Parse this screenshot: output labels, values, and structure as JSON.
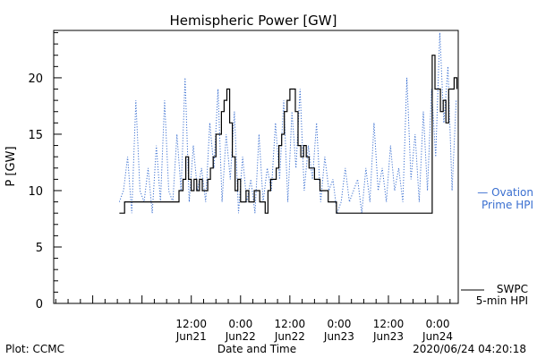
{
  "chart_data": {
    "type": "line",
    "title": "Hemispheric Power [GW]",
    "ylabel": "P [GW]",
    "xlabel": "Date and Time",
    "ylim": [
      0,
      24.2
    ],
    "yticks": [
      0,
      5,
      10,
      15,
      20
    ],
    "xlim": [
      "2020-06-20T02:30",
      "2020-06-24T05:00"
    ],
    "xticks": [
      {
        "t": "2020-06-21T12:00",
        "line1": "12:00",
        "line2": "Jun21"
      },
      {
        "t": "2020-06-22T00:00",
        "line1": "0:00",
        "line2": "Jun22"
      },
      {
        "t": "2020-06-22T12:00",
        "line1": "12:00",
        "line2": "Jun22"
      },
      {
        "t": "2020-06-23T00:00",
        "line1": "0:00",
        "line2": "Jun23"
      },
      {
        "t": "2020-06-23T12:00",
        "line1": "12:00",
        "line2": "Jun23"
      },
      {
        "t": "2020-06-24T00:00",
        "line1": "0:00",
        "line2": "Jun24"
      }
    ],
    "series": [
      {
        "name": "SWPC 5-min HPI",
        "legend_line1": "SWPC",
        "legend_line2": "5-min HPI",
        "color": "#000000",
        "style": "solid",
        "x": [
          "2020-06-20T18:30",
          "2020-06-20T19:10",
          "2020-06-20T19:45",
          "2020-06-20T20:40",
          "2020-06-20T22:00",
          "2020-06-20T23:30",
          "2020-06-21T01:00",
          "2020-06-21T03:00",
          "2020-06-21T05:00",
          "2020-06-21T06:30",
          "2020-06-21T08:00",
          "2020-06-21T09:00",
          "2020-06-21T10:00",
          "2020-06-21T10:40",
          "2020-06-21T11:20",
          "2020-06-21T12:00",
          "2020-06-21T12:40",
          "2020-06-21T13:20",
          "2020-06-21T14:00",
          "2020-06-21T14:40",
          "2020-06-21T15:20",
          "2020-06-21T16:00",
          "2020-06-21T16:40",
          "2020-06-21T17:20",
          "2020-06-21T18:00",
          "2020-06-21T18:40",
          "2020-06-21T19:20",
          "2020-06-21T20:00",
          "2020-06-21T20:40",
          "2020-06-21T21:20",
          "2020-06-21T22:00",
          "2020-06-21T22:40",
          "2020-06-21T23:20",
          "2020-06-22T00:00",
          "2020-06-22T00:40",
          "2020-06-22T01:20",
          "2020-06-22T02:00",
          "2020-06-22T02:40",
          "2020-06-22T03:20",
          "2020-06-22T04:00",
          "2020-06-22T04:40",
          "2020-06-22T05:20",
          "2020-06-22T06:00",
          "2020-06-22T06:40",
          "2020-06-22T07:20",
          "2020-06-22T08:00",
          "2020-06-22T08:40",
          "2020-06-22T09:20",
          "2020-06-22T10:00",
          "2020-06-22T10:40",
          "2020-06-22T11:20",
          "2020-06-22T12:00",
          "2020-06-22T12:40",
          "2020-06-22T13:20",
          "2020-06-22T14:00",
          "2020-06-22T14:40",
          "2020-06-22T15:20",
          "2020-06-22T16:00",
          "2020-06-22T16:40",
          "2020-06-22T17:20",
          "2020-06-22T18:00",
          "2020-06-22T18:40",
          "2020-06-22T19:20",
          "2020-06-22T20:00",
          "2020-06-22T20:40",
          "2020-06-22T21:20",
          "2020-06-22T22:00",
          "2020-06-22T22:40",
          "2020-06-22T23:20",
          "2020-06-23T00:00",
          "2020-06-23T22:40",
          "2020-06-23T23:20",
          "2020-06-24T00:00",
          "2020-06-24T00:40",
          "2020-06-24T01:20",
          "2020-06-24T02:00",
          "2020-06-24T02:40",
          "2020-06-24T03:20",
          "2020-06-24T04:00",
          "2020-06-24T04:40"
        ],
        "y": [
          8,
          8,
          9,
          9,
          9,
          9,
          9,
          9,
          9,
          9,
          9,
          10,
          11,
          13,
          11,
          10,
          11,
          10,
          11,
          10,
          10,
          11,
          12,
          13,
          15,
          15,
          17,
          18,
          19,
          16,
          13,
          10,
          11,
          9,
          9,
          10,
          9,
          9,
          10,
          10,
          9,
          9,
          8,
          10,
          11,
          11,
          12,
          14,
          15,
          17,
          18,
          19,
          19,
          17,
          14,
          13,
          14,
          13,
          12,
          12,
          11,
          11,
          10,
          10,
          10,
          9,
          9,
          9,
          8,
          8,
          22,
          19,
          19,
          17,
          18,
          16,
          19,
          19,
          20,
          19
        ]
      },
      {
        "name": "Ovation Prime HPI",
        "legend_line1": "— Ovation",
        "legend_line2": "Prime HPI",
        "color": "#3a6fd0",
        "style": "dotted",
        "x": [
          "2020-06-20T18:30",
          "2020-06-20T19:30",
          "2020-06-20T20:30",
          "2020-06-20T21:30",
          "2020-06-20T22:30",
          "2020-06-20T23:30",
          "2020-06-21T00:30",
          "2020-06-21T01:30",
          "2020-06-21T02:30",
          "2020-06-21T03:30",
          "2020-06-21T04:30",
          "2020-06-21T05:30",
          "2020-06-21T06:30",
          "2020-06-21T07:30",
          "2020-06-21T08:30",
          "2020-06-21T09:30",
          "2020-06-21T10:30",
          "2020-06-21T11:30",
          "2020-06-21T12:30",
          "2020-06-21T13:30",
          "2020-06-21T14:30",
          "2020-06-21T15:30",
          "2020-06-21T16:30",
          "2020-06-21T17:30",
          "2020-06-21T18:30",
          "2020-06-21T19:30",
          "2020-06-21T20:30",
          "2020-06-21T21:30",
          "2020-06-21T22:30",
          "2020-06-21T23:30",
          "2020-06-22T00:30",
          "2020-06-22T01:30",
          "2020-06-22T02:30",
          "2020-06-22T03:30",
          "2020-06-22T04:30",
          "2020-06-22T05:30",
          "2020-06-22T06:30",
          "2020-06-22T07:30",
          "2020-06-22T08:30",
          "2020-06-22T09:30",
          "2020-06-22T10:30",
          "2020-06-22T11:30",
          "2020-06-22T12:30",
          "2020-06-22T13:30",
          "2020-06-22T14:30",
          "2020-06-22T15:30",
          "2020-06-22T16:30",
          "2020-06-22T17:30",
          "2020-06-22T18:30",
          "2020-06-22T19:30",
          "2020-06-22T20:30",
          "2020-06-22T21:30",
          "2020-06-22T22:30",
          "2020-06-22T23:30",
          "2020-06-23T00:30",
          "2020-06-23T01:30",
          "2020-06-23T02:30",
          "2020-06-23T03:30",
          "2020-06-23T04:30",
          "2020-06-23T05:30",
          "2020-06-23T06:30",
          "2020-06-23T07:30",
          "2020-06-23T08:30",
          "2020-06-23T09:30",
          "2020-06-23T10:30",
          "2020-06-23T11:30",
          "2020-06-23T12:30",
          "2020-06-23T13:30",
          "2020-06-23T14:30",
          "2020-06-23T15:30",
          "2020-06-23T16:30",
          "2020-06-23T17:30",
          "2020-06-23T18:30",
          "2020-06-23T19:30",
          "2020-06-23T20:30",
          "2020-06-23T21:30",
          "2020-06-23T22:30",
          "2020-06-23T23:30",
          "2020-06-24T00:30",
          "2020-06-24T01:30",
          "2020-06-24T02:30",
          "2020-06-24T03:30",
          "2020-06-24T04:30"
        ],
        "y": [
          9,
          10,
          13,
          8,
          18,
          10,
          9,
          12,
          8,
          14,
          9,
          18,
          10,
          9,
          15,
          10,
          20,
          9,
          14,
          10,
          12,
          9,
          16,
          12,
          19,
          9,
          15,
          11,
          17,
          8,
          13,
          9,
          11,
          8,
          15,
          9,
          12,
          10,
          16,
          11,
          18,
          9,
          17,
          12,
          19,
          10,
          14,
          11,
          16,
          9,
          13,
          10,
          11,
          8,
          9,
          12,
          9,
          10,
          11,
          8,
          12,
          9,
          16,
          10,
          12,
          9,
          14,
          10,
          12,
          9,
          20,
          11,
          15,
          9,
          17,
          10,
          19,
          13,
          24,
          16,
          21,
          10,
          18
        ]
      }
    ]
  },
  "footer": {
    "plot_credit": "Plot: CCMC",
    "xlabel": "Date and Time",
    "timestamp": "2020/06/24 04:20:18"
  }
}
